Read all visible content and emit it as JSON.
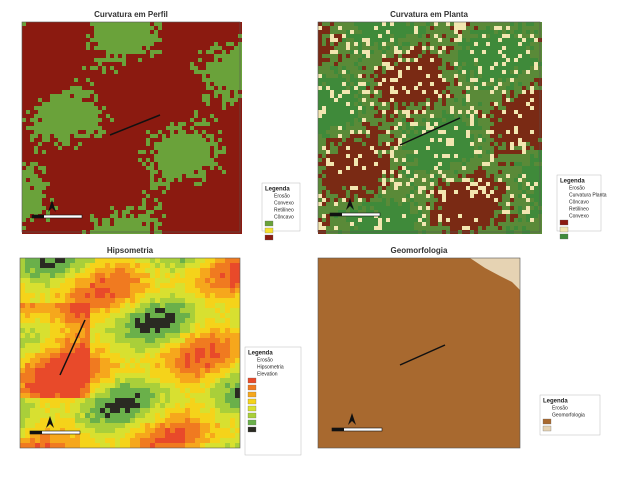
{
  "panels": [
    {
      "title": "Curvatura em Perfil",
      "legend": {
        "title": "Legenda",
        "items": [
          "Erosão",
          "Convexo",
          "Retilíneo",
          "Côncavo"
        ]
      }
    },
    {
      "title": "Curvatura em Planta",
      "legend": {
        "title": "Legenda",
        "items": [
          "Erosão",
          "Curvatura Planta",
          "Côncavo",
          "Retilíneo",
          "Convexo"
        ]
      }
    },
    {
      "title": "Hipsometria",
      "legend": {
        "title": "Legenda",
        "items": [
          "Erosão",
          "Hipsometria",
          "Elevation"
        ]
      }
    },
    {
      "title": "Geomorfologia",
      "legend": {
        "title": "Legenda",
        "items": [
          "Erosão",
          "Geomorfologia"
        ]
      }
    }
  ]
}
